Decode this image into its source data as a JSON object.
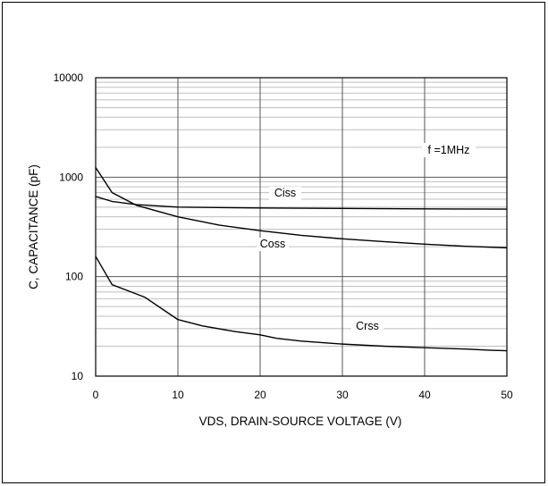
{
  "chart_data": {
    "type": "line",
    "title": "",
    "xlabel": "VDS, DRAIN-SOURCE VOLTAGE (V)",
    "ylabel": "C, CAPACITANCE (pF)",
    "xlim": [
      0,
      50
    ],
    "ylim": [
      10,
      10000
    ],
    "yscale": "log",
    "grid": true,
    "x_ticks": [
      "0",
      "10",
      "20",
      "30",
      "40",
      "50"
    ],
    "y_ticks": [
      "10",
      "100",
      "1000",
      "10000"
    ],
    "annotation": "f =1MHz",
    "series": [
      {
        "name": "Ciss",
        "x": [
          0,
          2,
          5,
          10,
          20,
          30,
          40,
          50
        ],
        "y": [
          640,
          570,
          530,
          500,
          490,
          485,
          480,
          478
        ]
      },
      {
        "name": "Coss",
        "x": [
          0,
          2,
          5,
          10,
          15,
          20,
          25,
          30,
          35,
          40,
          45,
          50
        ],
        "y": [
          1250,
          700,
          520,
          400,
          330,
          290,
          260,
          240,
          225,
          212,
          202,
          195
        ]
      },
      {
        "name": "Crss",
        "x": [
          0,
          2,
          6,
          10,
          13,
          17,
          20,
          22,
          25,
          30,
          35,
          40,
          45,
          48,
          50
        ],
        "y": [
          160,
          83,
          62,
          37,
          32,
          28,
          26,
          24,
          22.5,
          21,
          20,
          19.3,
          18.7,
          18.2,
          18
        ]
      }
    ]
  }
}
